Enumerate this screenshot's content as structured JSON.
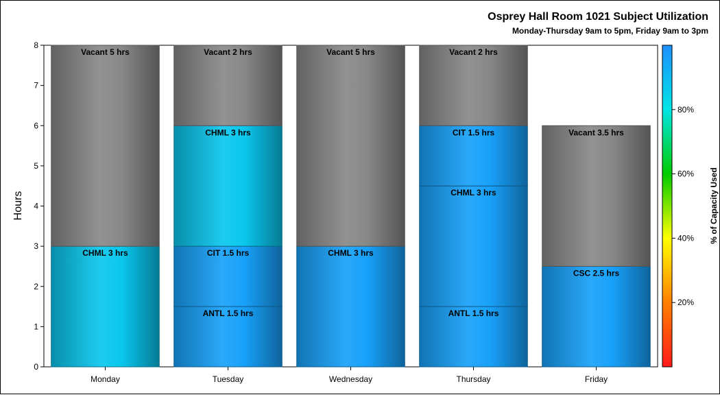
{
  "chart_data": {
    "type": "bar",
    "stacked": true,
    "title": "Osprey Hall Room 1021 Subject Utilization",
    "subtitle": "Monday-Thursday 9am to 5pm, Friday 9am to 3pm",
    "ylabel": "Hours",
    "xlabel": "",
    "ylim": [
      0,
      8
    ],
    "yticks": [
      "0",
      "1",
      "2",
      "3",
      "4",
      "5",
      "6",
      "7",
      "8"
    ],
    "categories": [
      "Monday",
      "Tuesday",
      "Wednesday",
      "Thursday",
      "Friday"
    ],
    "bars": [
      {
        "category": "Monday",
        "segments": [
          {
            "label": "CHML 3 hrs",
            "subject": "CHML",
            "hours": 3,
            "capacity_pct": 87
          },
          {
            "label": "Vacant 5 hrs",
            "subject": "Vacant",
            "hours": 5,
            "vacant": true
          }
        ]
      },
      {
        "category": "Tuesday",
        "segments": [
          {
            "label": "ANTL 1.5 hrs",
            "subject": "ANTL",
            "hours": 1.5,
            "capacity_pct": 96
          },
          {
            "label": "CIT 1.5 hrs",
            "subject": "CIT",
            "hours": 1.5,
            "capacity_pct": 96
          },
          {
            "label": "CHML 3 hrs",
            "subject": "CHML",
            "hours": 3,
            "capacity_pct": 87
          },
          {
            "label": "Vacant 2 hrs",
            "subject": "Vacant",
            "hours": 2,
            "vacant": true
          }
        ]
      },
      {
        "category": "Wednesday",
        "segments": [
          {
            "label": "CHML 3 hrs",
            "subject": "CHML",
            "hours": 3,
            "capacity_pct": 96
          },
          {
            "label": "Vacant 5 hrs",
            "subject": "Vacant",
            "hours": 5,
            "vacant": true
          }
        ]
      },
      {
        "category": "Thursday",
        "segments": [
          {
            "label": "ANTL 1.5 hrs",
            "subject": "ANTL",
            "hours": 1.5,
            "capacity_pct": 96
          },
          {
            "label": "CHML 3 hrs",
            "subject": "CHML",
            "hours": 3,
            "capacity_pct": 96
          },
          {
            "label": "CIT 1.5 hrs",
            "subject": "CIT",
            "hours": 1.5,
            "capacity_pct": 96
          },
          {
            "label": "Vacant 2 hrs",
            "subject": "Vacant",
            "hours": 2,
            "vacant": true
          }
        ]
      },
      {
        "category": "Friday",
        "segments": [
          {
            "label": "CSC 2.5 hrs",
            "subject": "CSC",
            "hours": 2.5,
            "capacity_pct": 96
          },
          {
            "label": "Vacant 3.5 hrs",
            "subject": "Vacant",
            "hours": 3.5,
            "vacant": true
          }
        ]
      }
    ],
    "colorbar": {
      "label": "% of Capacity Used",
      "range": [
        0,
        100
      ],
      "ticks": [
        {
          "value": 20,
          "label": "20%"
        },
        {
          "value": 40,
          "label": "40%"
        },
        {
          "value": 60,
          "label": "60%"
        },
        {
          "value": 80,
          "label": "80%"
        }
      ],
      "colors": [
        "#ff1a1a",
        "#ff7f00",
        "#ffff00",
        "#00cc00",
        "#00e5e5",
        "#1e90ff"
      ]
    },
    "vacant_color": "#888888",
    "grid": false,
    "legend": "right (colorbar)"
  }
}
